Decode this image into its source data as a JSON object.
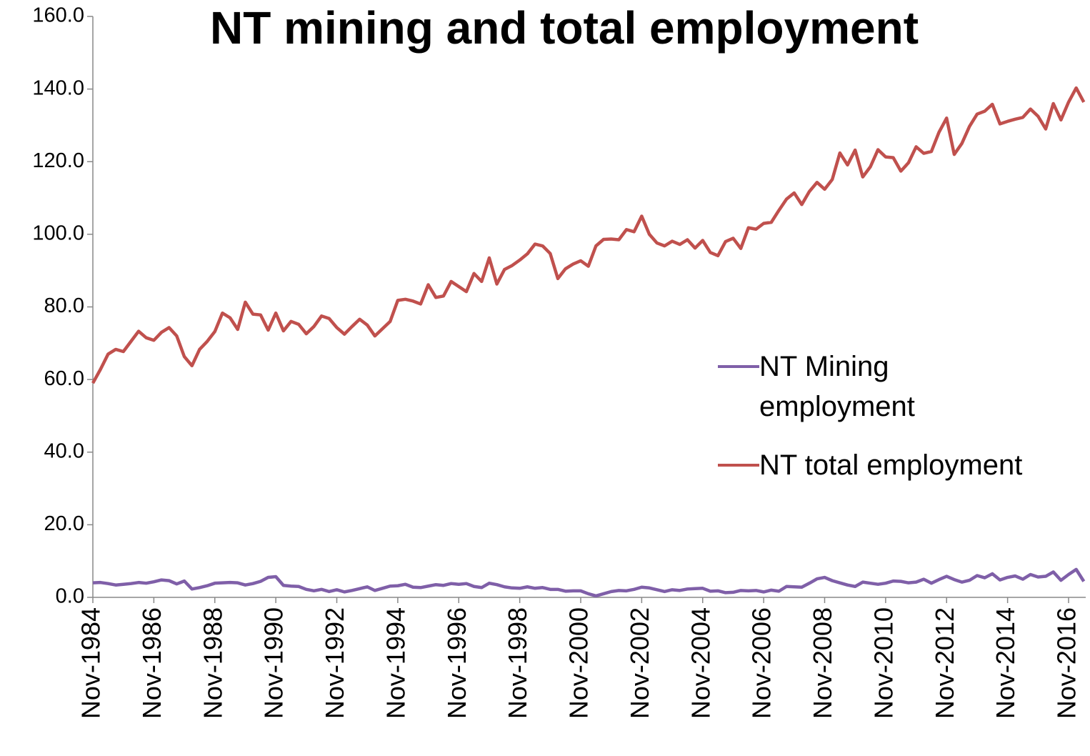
{
  "chart_data": {
    "type": "line",
    "title": "NT mining and total employment",
    "categories": [
      "Nov-1984",
      null,
      null,
      null,
      null,
      null,
      null,
      null,
      "Nov-1986",
      null,
      null,
      null,
      null,
      null,
      null,
      null,
      "Nov-1988",
      null,
      null,
      null,
      null,
      null,
      null,
      null,
      "Nov-1990",
      null,
      null,
      null,
      null,
      null,
      null,
      null,
      "Nov-1992",
      null,
      null,
      null,
      null,
      null,
      null,
      null,
      "Nov-1994",
      null,
      null,
      null,
      null,
      null,
      null,
      null,
      "Nov-1996",
      null,
      null,
      null,
      null,
      null,
      null,
      null,
      "Nov-1998",
      null,
      null,
      null,
      null,
      null,
      null,
      null,
      "Nov-2000",
      null,
      null,
      null,
      null,
      null,
      null,
      null,
      "Nov-2002",
      null,
      null,
      null,
      null,
      null,
      null,
      null,
      "Nov-2004",
      null,
      null,
      null,
      null,
      null,
      null,
      null,
      "Nov-2006",
      null,
      null,
      null,
      null,
      null,
      null,
      null,
      "Nov-2008",
      null,
      null,
      null,
      null,
      null,
      null,
      null,
      "Nov-2010",
      null,
      null,
      null,
      null,
      null,
      null,
      null,
      "Nov-2012",
      null,
      null,
      null,
      null,
      null,
      null,
      null,
      "Nov-2014",
      null,
      null,
      null,
      null,
      null,
      null,
      null,
      "Nov-2016",
      null,
      null
    ],
    "series": [
      {
        "name": "NT Mining employment",
        "color": "#7f5fa8",
        "values": [
          4,
          4.1,
          3.8,
          3.4,
          3.6,
          3.8,
          4.1,
          3.9,
          4.3,
          4.8,
          4.6,
          3.7,
          4.5,
          2.3,
          2.7,
          3.2,
          3.9,
          4,
          4.1,
          4,
          3.4,
          3.8,
          4.4,
          5.5,
          5.7,
          3.3,
          3.1,
          3,
          2.2,
          1.8,
          2.2,
          1.6,
          2.1,
          1.5,
          1.9,
          2.4,
          2.9,
          1.9,
          2.5,
          3.1,
          3.2,
          3.6,
          2.8,
          2.7,
          3.1,
          3.5,
          3.3,
          3.8,
          3.6,
          3.8,
          3,
          2.7,
          3.9,
          3.5,
          2.9,
          2.6,
          2.5,
          2.9,
          2.5,
          2.7,
          2.2,
          2.2,
          1.7,
          1.8,
          1.8,
          1,
          0.4,
          1,
          1.6,
          1.9,
          1.8,
          2.2,
          2.8,
          2.6,
          2.1,
          1.6,
          2.1,
          1.9,
          2.3,
          2.4,
          2.5,
          1.7,
          1.8,
          1.3,
          1.4,
          1.9,
          1.8,
          1.9,
          1.5,
          2,
          1.7,
          3,
          2.9,
          2.8,
          3.9,
          5.1,
          5.5,
          4.6,
          4,
          3.4,
          3,
          4.2,
          3.9,
          3.6,
          3.9,
          4.5,
          4.4,
          4,
          4.2,
          5,
          3.9,
          4.9,
          5.8,
          4.9,
          4.2,
          4.7,
          6,
          5.4,
          6.5,
          4.8,
          5.5,
          5.9,
          5,
          6.3,
          5.6,
          5.8,
          7,
          4.7,
          6.3,
          7.7,
          4.4
        ]
      },
      {
        "name": "NT total employment",
        "color": "#c0504d",
        "values": [
          59,
          62.8,
          67,
          68.3,
          67.7,
          70.5,
          73.3,
          71.5,
          70.8,
          73,
          74.3,
          72,
          66.3,
          63.8,
          68.3,
          70.5,
          73.2,
          78.3,
          77,
          73.8,
          81.3,
          78,
          77.8,
          73.6,
          78.3,
          73.4,
          76,
          75.2,
          72.6,
          74.6,
          77.5,
          76.8,
          74.3,
          72.5,
          74.6,
          76.6,
          75,
          72,
          74,
          76,
          81.8,
          82.1,
          81.6,
          80.8,
          86.1,
          82.6,
          83,
          87,
          85.6,
          84.2,
          89.2,
          87,
          93.5,
          86.3,
          90.3,
          91.4,
          92.9,
          94.6,
          97.3,
          96.8,
          94.7,
          87.8,
          90.5,
          91.8,
          92.7,
          91.2,
          96.8,
          98.6,
          98.7,
          98.5,
          101.3,
          100.7,
          105,
          100,
          97.6,
          96.8,
          98.1,
          97.2,
          98.5,
          96.2,
          98.3,
          95,
          94.1,
          98,
          98.9,
          96.1,
          101.8,
          101.4,
          103,
          103.3,
          106.6,
          109.7,
          111.4,
          108.2,
          111.8,
          114.3,
          112.4,
          115.1,
          122.4,
          119.1,
          123.2,
          115.8,
          118.6,
          123.3,
          121.3,
          121.1,
          117.4,
          119.7,
          124.1,
          122.3,
          122.8,
          128.1,
          132,
          122,
          125,
          129.7,
          133.1,
          133.9,
          135.8,
          130.4,
          131.1,
          131.7,
          132.2,
          134.5,
          132.5,
          129,
          136,
          131.5,
          136.4,
          140.3,
          136.4
        ]
      }
    ],
    "ylim": [
      0,
      160
    ],
    "yticks": [
      {
        "value": 0,
        "label": "0.0"
      },
      {
        "value": 20,
        "label": "20.0"
      },
      {
        "value": 40,
        "label": "40.0"
      },
      {
        "value": 60,
        "label": "60.0"
      },
      {
        "value": 80,
        "label": "80.0"
      },
      {
        "value": 100,
        "label": "100.0"
      },
      {
        "value": 120,
        "label": "120.0"
      },
      {
        "value": 140,
        "label": "140.0"
      },
      {
        "value": 160,
        "label": "160.0"
      }
    ],
    "legend": "right"
  }
}
